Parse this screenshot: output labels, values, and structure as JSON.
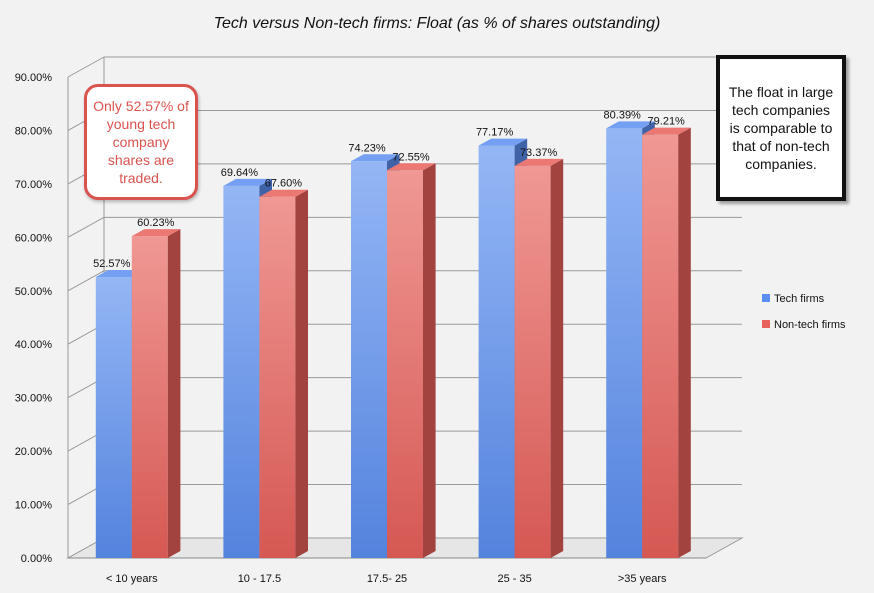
{
  "colors": {
    "tech": "#5b8ef0",
    "nontech": "#e8605a",
    "callout_left_border": "#d9534f",
    "background": "#f2f2f2"
  },
  "annotations": {
    "left_callout": "Only 52.57% of young tech company shares are traded.",
    "right_callout": "The float in large tech companies is comparable to that of non-tech companies."
  },
  "chart_data": {
    "type": "bar",
    "title": "Tech versus Non-tech firms: Float (as % of shares outstanding)",
    "xlabel": "",
    "ylabel": "",
    "categories": [
      "< 10 years",
      "10 - 17.5",
      "17.5- 25",
      "25 - 35",
      ">35 years"
    ],
    "series": [
      {
        "name": "Tech firms",
        "values": [
          52.57,
          69.64,
          74.23,
          77.17,
          80.39
        ],
        "labels": [
          "52.57%",
          "69.64%",
          "74.23%",
          "77.17%",
          "80.39%"
        ]
      },
      {
        "name": "Non-tech firms",
        "values": [
          60.23,
          67.6,
          72.55,
          73.37,
          79.21
        ],
        "labels": [
          "60.23%",
          "67.60%",
          "72.55%",
          "73.37%",
          "79.21%"
        ]
      }
    ],
    "ylim": [
      0,
      90
    ],
    "yticks": [
      "0.00%",
      "10.00%",
      "20.00%",
      "30.00%",
      "40.00%",
      "50.00%",
      "60.00%",
      "70.00%",
      "80.00%",
      "90.00%"
    ],
    "grid": true,
    "legend": "right",
    "style": "3d-columns"
  }
}
